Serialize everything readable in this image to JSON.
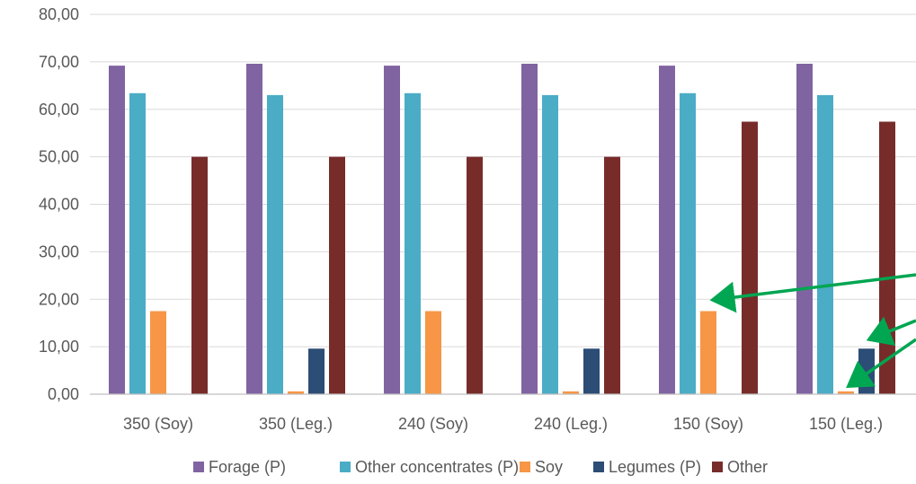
{
  "chart_data": {
    "type": "bar",
    "title": "",
    "xlabel": "",
    "ylabel": "",
    "ylim": [
      0,
      80
    ],
    "y_ticks": [
      "0,00",
      "10,00",
      "20,00",
      "30,00",
      "40,00",
      "50,00",
      "60,00",
      "70,00",
      "80,00"
    ],
    "categories": [
      "350 (Soy)",
      "350 (Leg.)",
      "240 (Soy)",
      "240 (Leg.)",
      "150 (Soy)",
      "150 (Leg.)"
    ],
    "series": [
      {
        "name": "Forage (P)",
        "color": "#8064A2",
        "values": [
          69.2,
          69.6,
          69.2,
          69.6,
          69.2,
          69.6
        ]
      },
      {
        "name": "Other concentrates (P)",
        "color": "#4BACC6",
        "values": [
          63.4,
          63.0,
          63.4,
          63.0,
          63.4,
          63.0
        ]
      },
      {
        "name": "Soy",
        "color": "#F79646",
        "values": [
          17.5,
          0.6,
          17.5,
          0.6,
          17.5,
          0.6
        ]
      },
      {
        "name": "Legumes (P)",
        "color": "#2C4D75",
        "values": [
          0,
          9.6,
          0,
          9.6,
          0,
          9.6
        ]
      },
      {
        "name": "Other",
        "color": "#772C2A",
        "values": [
          50.0,
          50.0,
          50.0,
          50.0,
          57.4,
          57.4
        ]
      }
    ],
    "grid": true,
    "legend_position": "bottom",
    "annotations": [
      "green-arrow-to-soy-150-soy",
      "green-arrow-to-legumes-150-leg",
      "green-arrow-to-soy-150-leg"
    ],
    "annotation_color": "#00A651"
  }
}
